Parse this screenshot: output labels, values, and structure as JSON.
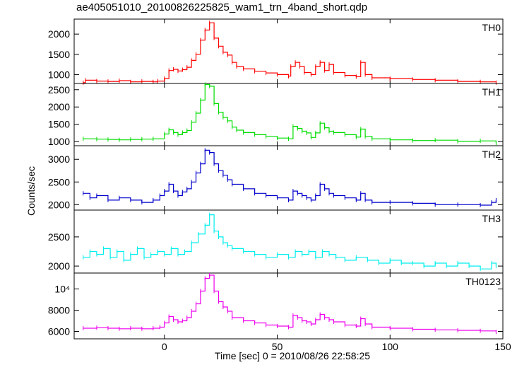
{
  "chart_data": {
    "type": "line",
    "title": "ae405051010_20100826225825_wam1_trn_4band_short.qdp",
    "xlabel": "Time [sec] 0 = 2010/08/26 22:58:25",
    "ylabel": "Counts/sec",
    "xlim": [
      -40,
      150
    ],
    "x_ticks": [
      0,
      50,
      100,
      150
    ],
    "grid": false,
    "panels": [
      {
        "name": "TH0",
        "color": "#ff0000",
        "ylim": [
          780,
          2370
        ],
        "y_ticks": [
          {
            "value": 1000,
            "label": "1000"
          },
          {
            "value": 1500,
            "label": "1500"
          },
          {
            "value": 2000,
            "label": "2000"
          }
        ],
        "points": [
          [
            -36,
            800
          ],
          [
            -35,
            860
          ],
          [
            -30,
            840
          ],
          [
            -25,
            830
          ],
          [
            -20,
            850
          ],
          [
            -15,
            820
          ],
          [
            -10,
            830
          ],
          [
            -5,
            820
          ],
          [
            -3,
            840
          ],
          [
            0,
            900
          ],
          [
            2,
            1100
          ],
          [
            4,
            1130
          ],
          [
            6,
            1090
          ],
          [
            8,
            1120
          ],
          [
            10,
            1180
          ],
          [
            12,
            1350
          ],
          [
            14,
            1500
          ],
          [
            16,
            1850
          ],
          [
            18,
            2100
          ],
          [
            20,
            2280
          ],
          [
            22,
            1900
          ],
          [
            24,
            1700
          ],
          [
            26,
            1550
          ],
          [
            28,
            1480
          ],
          [
            30,
            1300
          ],
          [
            32,
            1200
          ],
          [
            35,
            1140
          ],
          [
            40,
            1080
          ],
          [
            45,
            1040
          ],
          [
            50,
            1000
          ],
          [
            55,
            960
          ],
          [
            56,
            1200
          ],
          [
            58,
            1300
          ],
          [
            60,
            1200
          ],
          [
            62,
            1050
          ],
          [
            65,
            1000
          ],
          [
            67,
            1200
          ],
          [
            69,
            1300
          ],
          [
            71,
            1100
          ],
          [
            73,
            1250
          ],
          [
            75,
            1050
          ],
          [
            80,
            980
          ],
          [
            85,
            950
          ],
          [
            87,
            1300
          ],
          [
            89,
            1000
          ],
          [
            92,
            920
          ],
          [
            100,
            900
          ],
          [
            110,
            880
          ],
          [
            120,
            860
          ],
          [
            130,
            830
          ],
          [
            140,
            820
          ],
          [
            147,
            800
          ]
        ]
      },
      {
        "name": "TH1",
        "color": "#00dd00",
        "ylim": [
          880,
          2680
        ],
        "y_ticks": [
          {
            "value": 1000,
            "label": "1000"
          },
          {
            "value": 1500,
            "label": "1500"
          },
          {
            "value": 2000,
            "label": "2000"
          },
          {
            "value": 2500,
            "label": "2500"
          }
        ],
        "points": [
          [
            -36,
            1080
          ],
          [
            -30,
            1070
          ],
          [
            -25,
            1060
          ],
          [
            -20,
            1050
          ],
          [
            -15,
            1060
          ],
          [
            -10,
            1070
          ],
          [
            -5,
            1080
          ],
          [
            0,
            1220
          ],
          [
            2,
            1340
          ],
          [
            4,
            1260
          ],
          [
            6,
            1200
          ],
          [
            8,
            1260
          ],
          [
            10,
            1320
          ],
          [
            12,
            1560
          ],
          [
            14,
            1820
          ],
          [
            16,
            2200
          ],
          [
            18,
            2650
          ],
          [
            20,
            2600
          ],
          [
            22,
            2100
          ],
          [
            24,
            1850
          ],
          [
            26,
            1700
          ],
          [
            28,
            1600
          ],
          [
            30,
            1420
          ],
          [
            32,
            1330
          ],
          [
            35,
            1260
          ],
          [
            40,
            1200
          ],
          [
            45,
            1150
          ],
          [
            50,
            1100
          ],
          [
            55,
            1080
          ],
          [
            57,
            1440
          ],
          [
            59,
            1380
          ],
          [
            61,
            1300
          ],
          [
            63,
            1250
          ],
          [
            65,
            1120
          ],
          [
            67,
            1250
          ],
          [
            69,
            1530
          ],
          [
            71,
            1400
          ],
          [
            73,
            1300
          ],
          [
            75,
            1260
          ],
          [
            80,
            1200
          ],
          [
            85,
            1130
          ],
          [
            87,
            1360
          ],
          [
            89,
            1150
          ],
          [
            92,
            1080
          ],
          [
            100,
            1050
          ],
          [
            110,
            1030
          ],
          [
            120,
            1040
          ],
          [
            130,
            1010
          ],
          [
            140,
            1020
          ],
          [
            147,
            960
          ]
        ]
      },
      {
        "name": "TH2",
        "color": "#0000cc",
        "ylim": [
          1880,
          3300
        ],
        "y_ticks": [
          {
            "value": 2000,
            "label": "2000"
          },
          {
            "value": 2500,
            "label": "2500"
          },
          {
            "value": 3000,
            "label": "3000"
          }
        ],
        "points": [
          [
            -36,
            2250
          ],
          [
            -33,
            2150
          ],
          [
            -30,
            2200
          ],
          [
            -25,
            2100
          ],
          [
            -20,
            2150
          ],
          [
            -15,
            2100
          ],
          [
            -10,
            2050
          ],
          [
            -5,
            2100
          ],
          [
            -2,
            2200
          ],
          [
            0,
            2300
          ],
          [
            2,
            2450
          ],
          [
            4,
            2300
          ],
          [
            6,
            2200
          ],
          [
            8,
            2280
          ],
          [
            10,
            2350
          ],
          [
            12,
            2500
          ],
          [
            14,
            2700
          ],
          [
            16,
            2900
          ],
          [
            18,
            3200
          ],
          [
            20,
            3150
          ],
          [
            22,
            2900
          ],
          [
            24,
            2750
          ],
          [
            26,
            2650
          ],
          [
            28,
            2550
          ],
          [
            30,
            2450
          ],
          [
            35,
            2350
          ],
          [
            40,
            2250
          ],
          [
            45,
            2200
          ],
          [
            50,
            2150
          ],
          [
            55,
            2100
          ],
          [
            57,
            2300
          ],
          [
            59,
            2250
          ],
          [
            61,
            2200
          ],
          [
            63,
            2150
          ],
          [
            65,
            2100
          ],
          [
            67,
            2200
          ],
          [
            69,
            2450
          ],
          [
            71,
            2350
          ],
          [
            73,
            2250
          ],
          [
            75,
            2200
          ],
          [
            80,
            2150
          ],
          [
            85,
            2100
          ],
          [
            87,
            2250
          ],
          [
            89,
            2100
          ],
          [
            92,
            2050
          ],
          [
            100,
            2050
          ],
          [
            110,
            2030
          ],
          [
            120,
            2000
          ],
          [
            130,
            2000
          ],
          [
            140,
            1990
          ],
          [
            145,
            2050
          ],
          [
            147,
            2100
          ]
        ]
      },
      {
        "name": "TH3",
        "color": "#00eeee",
        "ylim": [
          1880,
          2960
        ],
        "y_ticks": [
          {
            "value": 2000,
            "label": "2000"
          },
          {
            "value": 2500,
            "label": "2500"
          }
        ],
        "points": [
          [
            -36,
            2150
          ],
          [
            -33,
            2250
          ],
          [
            -30,
            2200
          ],
          [
            -27,
            2300
          ],
          [
            -24,
            2150
          ],
          [
            -21,
            2250
          ],
          [
            -18,
            2100
          ],
          [
            -15,
            2200
          ],
          [
            -12,
            2300
          ],
          [
            -9,
            2150
          ],
          [
            -6,
            2200
          ],
          [
            -3,
            2250
          ],
          [
            0,
            2200
          ],
          [
            3,
            2300
          ],
          [
            6,
            2200
          ],
          [
            9,
            2250
          ],
          [
            12,
            2400
          ],
          [
            15,
            2550
          ],
          [
            18,
            2700
          ],
          [
            20,
            2880
          ],
          [
            22,
            2600
          ],
          [
            24,
            2500
          ],
          [
            26,
            2400
          ],
          [
            28,
            2350
          ],
          [
            30,
            2300
          ],
          [
            35,
            2250
          ],
          [
            40,
            2200
          ],
          [
            45,
            2150
          ],
          [
            50,
            2200
          ],
          [
            55,
            2150
          ],
          [
            58,
            2250
          ],
          [
            61,
            2200
          ],
          [
            64,
            2250
          ],
          [
            67,
            2150
          ],
          [
            70,
            2250
          ],
          [
            73,
            2200
          ],
          [
            76,
            2150
          ],
          [
            80,
            2100
          ],
          [
            85,
            2150
          ],
          [
            90,
            2100
          ],
          [
            95,
            2050
          ],
          [
            100,
            2100
          ],
          [
            105,
            2050
          ],
          [
            110,
            2050
          ],
          [
            115,
            2000
          ],
          [
            120,
            2050
          ],
          [
            125,
            2000
          ],
          [
            130,
            2050
          ],
          [
            135,
            2000
          ],
          [
            140,
            1950
          ],
          [
            145,
            2050
          ],
          [
            147,
            2000
          ]
        ]
      },
      {
        "name": "TH0123",
        "color": "#ee00ee",
        "ylim": [
          5300,
          11500
        ],
        "y_ticks": [
          {
            "value": 6000,
            "label": "6000"
          },
          {
            "value": 8000,
            "label": "8000"
          },
          {
            "value": 10000,
            "label": "10⁴"
          }
        ],
        "points": [
          [
            -36,
            6300
          ],
          [
            -30,
            6350
          ],
          [
            -25,
            6300
          ],
          [
            -20,
            6250
          ],
          [
            -15,
            6300
          ],
          [
            -10,
            6250
          ],
          [
            -5,
            6300
          ],
          [
            -2,
            6400
          ],
          [
            0,
            6800
          ],
          [
            2,
            7400
          ],
          [
            4,
            7100
          ],
          [
            6,
            6900
          ],
          [
            8,
            7000
          ],
          [
            10,
            7300
          ],
          [
            12,
            7900
          ],
          [
            14,
            8600
          ],
          [
            16,
            9800
          ],
          [
            18,
            11000
          ],
          [
            20,
            11300
          ],
          [
            22,
            9800
          ],
          [
            24,
            8800
          ],
          [
            26,
            8300
          ],
          [
            28,
            7900
          ],
          [
            30,
            7300
          ],
          [
            35,
            7000
          ],
          [
            40,
            6800
          ],
          [
            45,
            6600
          ],
          [
            50,
            6500
          ],
          [
            55,
            6400
          ],
          [
            57,
            7500
          ],
          [
            59,
            7300
          ],
          [
            61,
            7000
          ],
          [
            63,
            6900
          ],
          [
            65,
            6700
          ],
          [
            67,
            7100
          ],
          [
            69,
            7600
          ],
          [
            71,
            7300
          ],
          [
            73,
            7100
          ],
          [
            75,
            6900
          ],
          [
            80,
            6600
          ],
          [
            85,
            6500
          ],
          [
            87,
            7200
          ],
          [
            89,
            6700
          ],
          [
            92,
            6400
          ],
          [
            100,
            6300
          ],
          [
            110,
            6200
          ],
          [
            120,
            6150
          ],
          [
            130,
            6100
          ],
          [
            140,
            6050
          ],
          [
            147,
            5950
          ]
        ]
      }
    ]
  }
}
